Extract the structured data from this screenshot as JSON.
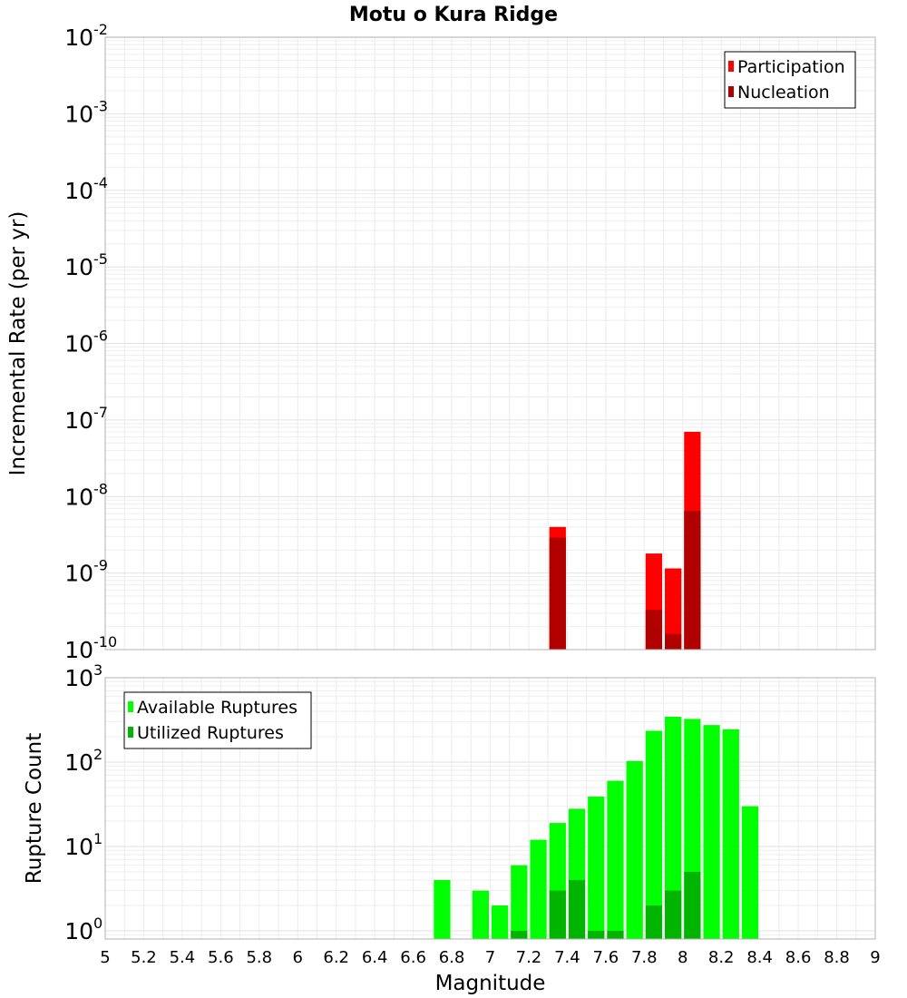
{
  "title": "Motu o Kura Ridge",
  "chart_data": [
    {
      "type": "bar",
      "id": "rate-panel",
      "title": "Motu o Kura Ridge",
      "ylabel": "Incremental Rate (per yr)",
      "xlabel": "",
      "yscale": "log",
      "ylim": [
        1e-10,
        0.01
      ],
      "xlim": [
        5,
        9
      ],
      "bar_width": 0.1,
      "y_ticks": [
        {
          "base": "10",
          "exp": "-2"
        },
        {
          "base": "10",
          "exp": "-3"
        },
        {
          "base": "10",
          "exp": "-4"
        },
        {
          "base": "10",
          "exp": "-5"
        },
        {
          "base": "10",
          "exp": "-6"
        },
        {
          "base": "10",
          "exp": "-7"
        },
        {
          "base": "10",
          "exp": "-8"
        },
        {
          "base": "10",
          "exp": "-9"
        },
        {
          "base": "10",
          "exp": "-10"
        }
      ],
      "legend_position": "top-right",
      "series": [
        {
          "name": "Participation",
          "color": "#ff0000",
          "points": [
            [
              7.35,
              4e-09
            ],
            [
              7.85,
              1.8e-09
            ],
            [
              7.95,
              1.15e-09
            ],
            [
              8.05,
              7e-08
            ]
          ]
        },
        {
          "name": "Nucleation",
          "color": "#b00000",
          "points": [
            [
              7.35,
              2.9e-09
            ],
            [
              7.85,
              3.3e-10
            ],
            [
              7.95,
              1.6e-10
            ],
            [
              8.05,
              6.5e-09
            ]
          ]
        }
      ]
    },
    {
      "type": "bar",
      "id": "count-panel",
      "ylabel": "Rupture Count",
      "xlabel": "Magnitude",
      "yscale": "log",
      "ylim": [
        0.8,
        1000
      ],
      "xlim": [
        5,
        9
      ],
      "bar_width": 0.1,
      "x_tick_labels": [
        "5",
        "5.2",
        "5.4",
        "5.6",
        "5.8",
        "6",
        "6.2",
        "6.4",
        "6.6",
        "6.8",
        "7",
        "7.2",
        "7.4",
        "7.6",
        "7.8",
        "8",
        "8.2",
        "8.4",
        "8.6",
        "8.8",
        "9"
      ],
      "y_ticks": [
        {
          "base": "10",
          "exp": "3"
        },
        {
          "base": "10",
          "exp": "2"
        },
        {
          "base": "10",
          "exp": "1"
        },
        {
          "base": "10",
          "exp": "0"
        }
      ],
      "legend_position": "top-left",
      "series": [
        {
          "name": "Available Ruptures",
          "color": "#00ff00",
          "points": [
            [
              6.75,
              4
            ],
            [
              6.95,
              3
            ],
            [
              7.05,
              2
            ],
            [
              7.15,
              6
            ],
            [
              7.25,
              12
            ],
            [
              7.35,
              19
            ],
            [
              7.45,
              28
            ],
            [
              7.55,
              39
            ],
            [
              7.65,
              60
            ],
            [
              7.75,
              103
            ],
            [
              7.85,
              235
            ],
            [
              7.95,
              345
            ],
            [
              8.05,
              325
            ],
            [
              8.15,
              275
            ],
            [
              8.25,
              245
            ],
            [
              8.35,
              30
            ]
          ]
        },
        {
          "name": "Utilized Ruptures",
          "color": "#00b400",
          "points": [
            [
              7.15,
              1
            ],
            [
              7.35,
              3
            ],
            [
              7.45,
              4
            ],
            [
              7.55,
              1
            ],
            [
              7.65,
              1
            ],
            [
              7.85,
              2
            ],
            [
              7.95,
              3
            ],
            [
              8.05,
              5
            ]
          ]
        }
      ]
    }
  ]
}
